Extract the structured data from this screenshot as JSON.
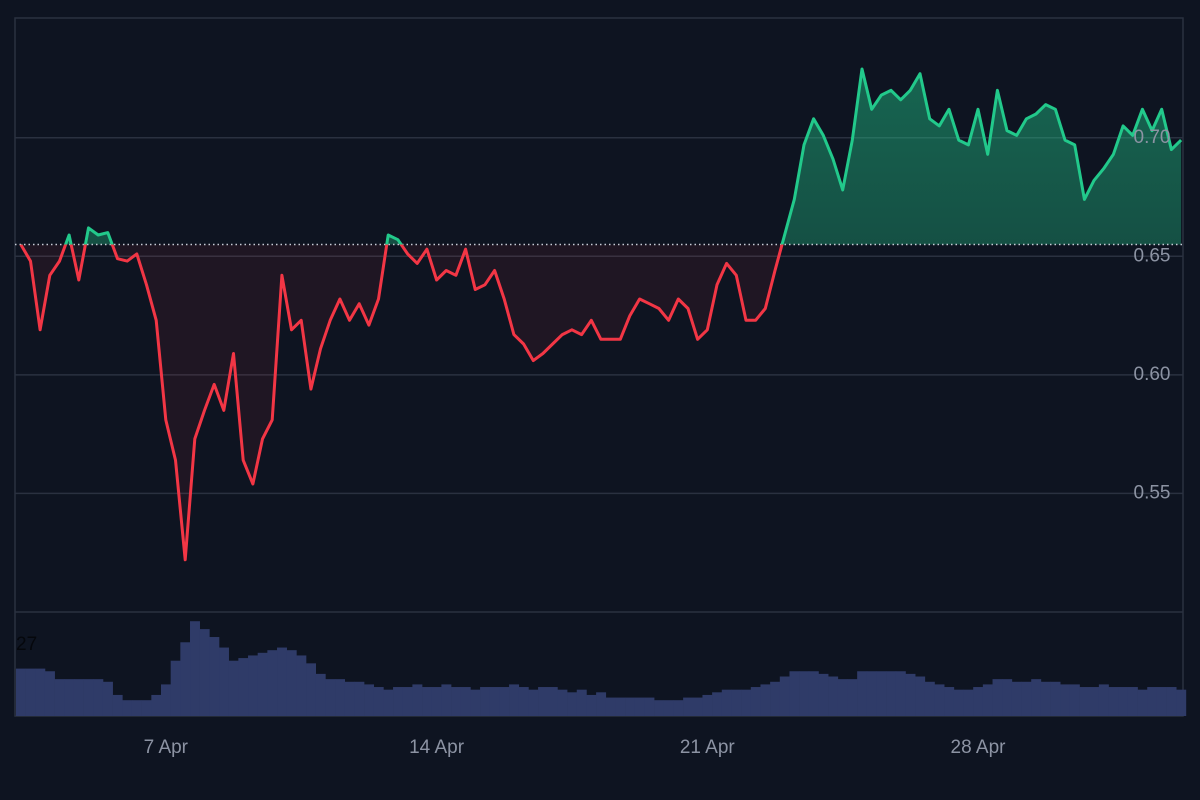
{
  "chart_data": {
    "type": "baseline",
    "x": [
      3.25,
      3.5,
      3.75,
      4,
      4.25,
      4.5,
      4.75,
      5,
      5.25,
      5.5,
      5.75,
      6,
      6.25,
      6.5,
      6.75,
      7,
      7.25,
      7.5,
      7.75,
      8,
      8.25,
      8.5,
      8.75,
      9,
      9.25,
      9.5,
      9.75,
      10,
      10.25,
      10.5,
      10.75,
      11,
      11.25,
      11.5,
      11.75,
      12,
      12.25,
      12.5,
      12.75,
      13,
      13.25,
      13.5,
      13.75,
      14,
      14.25,
      14.5,
      14.75,
      15,
      15.25,
      15.5,
      15.75,
      16,
      16.25,
      16.5,
      16.75,
      17,
      17.25,
      17.5,
      17.75,
      18,
      18.25,
      18.5,
      18.75,
      19,
      19.25,
      19.5,
      19.75,
      20,
      20.25,
      20.5,
      20.75,
      21,
      21.25,
      21.5,
      21.75,
      22,
      22.25,
      22.5,
      22.75,
      23,
      23.25,
      23.5,
      23.75,
      24,
      24.25,
      24.5,
      24.75,
      25,
      25.25,
      25.5,
      25.75,
      26,
      26.25,
      26.5,
      26.75,
      27,
      27.25,
      27.5,
      27.75,
      28,
      28.25,
      28.5,
      28.75,
      29,
      29.25,
      29.5,
      29.75,
      30,
      30.25,
      30.5,
      30.75,
      31,
      31.25,
      31.5,
      31.75,
      32,
      32.25,
      32.5,
      32.75,
      33,
      33.25
    ],
    "values": [
      0.655,
      0.648,
      0.619,
      0.642,
      0.648,
      0.659,
      0.64,
      0.662,
      0.659,
      0.66,
      0.649,
      0.648,
      0.651,
      0.638,
      0.623,
      0.581,
      0.564,
      0.522,
      0.573,
      0.585,
      0.596,
      0.585,
      0.609,
      0.564,
      0.554,
      0.573,
      0.581,
      0.642,
      0.619,
      0.623,
      0.594,
      0.611,
      0.623,
      0.632,
      0.623,
      0.63,
      0.621,
      0.632,
      0.659,
      0.657,
      0.651,
      0.647,
      0.653,
      0.64,
      0.644,
      0.642,
      0.653,
      0.636,
      0.638,
      0.644,
      0.632,
      0.617,
      0.613,
      0.606,
      0.609,
      0.613,
      0.617,
      0.619,
      0.617,
      0.623,
      0.615,
      0.615,
      0.615,
      0.625,
      0.632,
      0.63,
      0.628,
      0.623,
      0.632,
      0.628,
      0.615,
      0.619,
      0.638,
      0.647,
      0.642,
      0.623,
      0.623,
      0.628,
      0.644,
      0.659,
      0.674,
      0.697,
      0.708,
      0.701,
      0.691,
      0.678,
      0.699,
      0.729,
      0.712,
      0.718,
      0.72,
      0.716,
      0.72,
      0.727,
      0.708,
      0.705,
      0.712,
      0.699,
      0.697,
      0.712,
      0.693,
      0.72,
      0.703,
      0.701,
      0.708,
      0.71,
      0.714,
      0.712,
      0.699,
      0.697,
      0.674,
      0.682,
      0.687,
      0.693,
      0.705,
      0.701,
      0.712,
      0.703,
      0.712,
      0.695,
      0.699
    ],
    "baseline": 0.655,
    "xlim": [
      3.1,
      33.3
    ],
    "xticks": [
      {
        "value": 7,
        "label": "7 Apr"
      },
      {
        "value": 14,
        "label": "14 Apr"
      },
      {
        "value": 21,
        "label": "21 Apr"
      },
      {
        "value": 28,
        "label": "28 Apr"
      }
    ],
    "ylim": [
      0.5,
      0.7505
    ],
    "yticks": [
      {
        "value": 0.55,
        "label": "0.55"
      },
      {
        "value": 0.6,
        "label": "0.60"
      },
      {
        "value": 0.65,
        "label": "0.65"
      },
      {
        "value": 0.7,
        "label": "0.70"
      }
    ],
    "up_color": "#22c98b",
    "down_color": "#f23645",
    "grid": true,
    "volume": {
      "values": [
        18,
        18,
        18,
        17,
        14,
        14,
        14,
        14,
        14,
        13,
        8,
        6,
        6,
        6,
        8,
        12,
        21,
        28,
        36,
        33,
        30,
        26,
        21,
        22,
        23,
        24,
        25,
        26,
        25,
        23,
        20,
        16,
        14,
        14,
        13,
        13,
        12,
        11,
        10,
        11,
        11,
        12,
        11,
        11,
        12,
        11,
        11,
        10,
        11,
        11,
        11,
        12,
        11,
        10,
        11,
        11,
        10,
        9,
        10,
        8,
        9,
        7,
        7,
        7,
        7,
        7,
        6,
        6,
        6,
        7,
        7,
        8,
        9,
        10,
        10,
        10,
        11,
        12,
        13,
        15,
        17,
        17,
        17,
        16,
        15,
        14,
        14,
        17,
        17,
        17,
        17,
        17,
        16,
        15,
        13,
        12,
        11,
        10,
        10,
        11,
        12,
        14,
        14,
        13,
        13,
        14,
        13,
        13,
        12,
        12,
        11,
        11,
        12,
        11,
        11,
        11,
        10,
        11,
        11,
        11,
        10
      ],
      "color": "#2f3b68",
      "ylim": [
        0,
        39.5
      ],
      "yticks": [
        27
      ]
    }
  }
}
